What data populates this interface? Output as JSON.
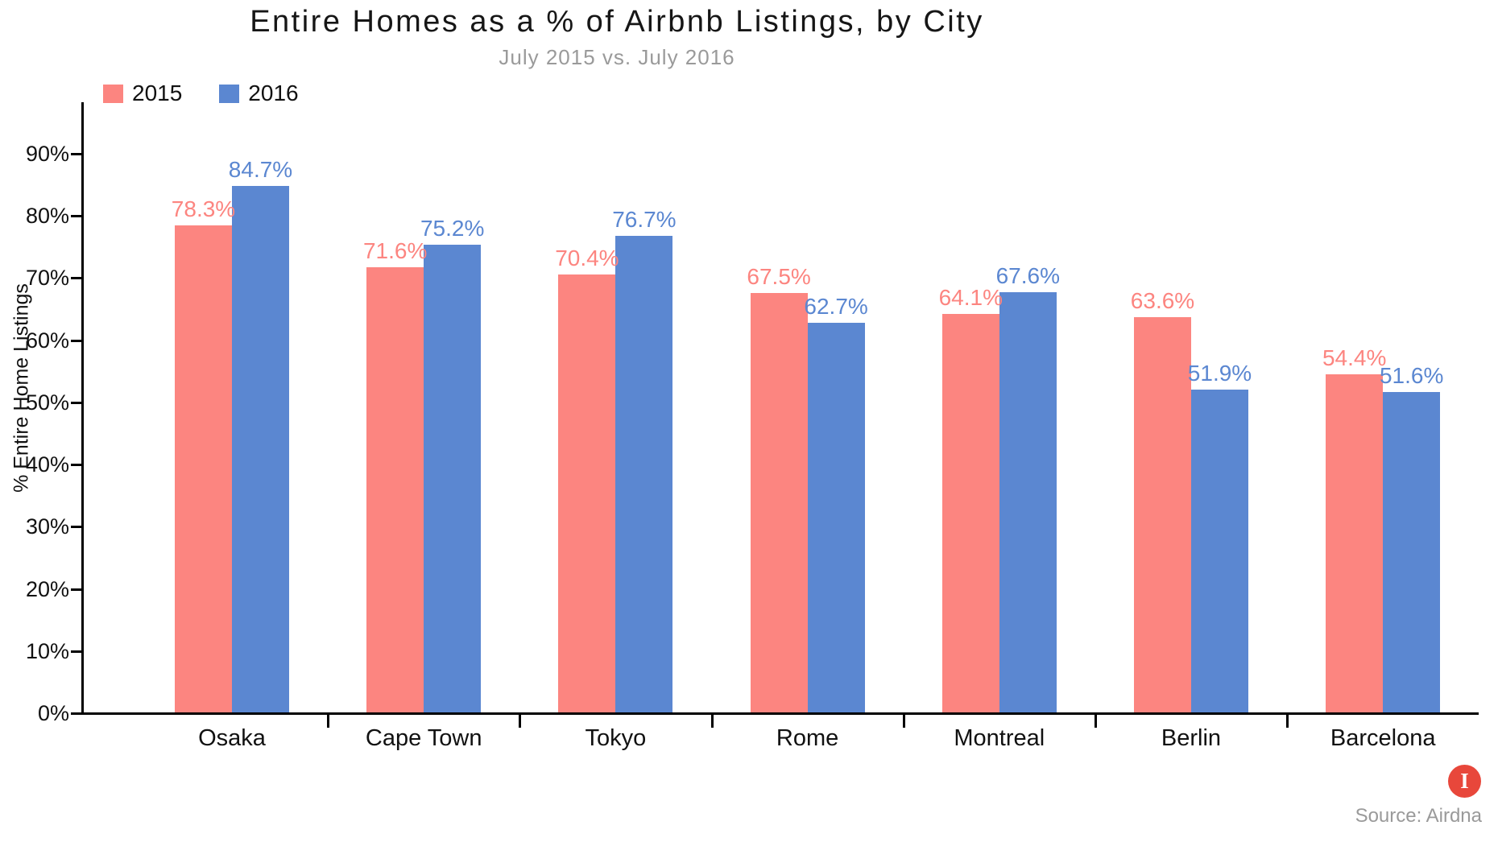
{
  "chart_data": {
    "type": "bar",
    "title": "Entire Homes as a % of Airbnb Listings, by City",
    "subtitle": "July 2015 vs. July 2016",
    "ylabel": "% Entire Home Listings",
    "categories": [
      "Osaka",
      "Cape Town",
      "Tokyo",
      "Rome",
      "Montreal",
      "Berlin",
      "Barcelona"
    ],
    "series": [
      {
        "name": "2015",
        "color": "#FC8580",
        "values": [
          78.3,
          71.6,
          70.4,
          67.5,
          64.1,
          63.6,
          54.4
        ]
      },
      {
        "name": "2016",
        "color": "#5B87D1",
        "values": [
          84.7,
          75.2,
          76.7,
          62.7,
          67.6,
          51.9,
          51.6
        ]
      }
    ],
    "value_label_format": "{v}%",
    "yticks": [
      0,
      10,
      20,
      30,
      40,
      50,
      60,
      70,
      80,
      90
    ],
    "ytick_suffix": "%",
    "ylim": [
      0,
      98
    ],
    "grid": false,
    "legend_position": "top-left",
    "colors": {
      "axis": "#000000",
      "title_text": "#161616",
      "subtitle_text": "#9a9a9a",
      "tick_text": "#111111"
    }
  },
  "footer": {
    "source": "Source: Airdna",
    "logo_icon": "infogram-icon",
    "logo_letter": "I",
    "logo_color": "#E8473B"
  }
}
